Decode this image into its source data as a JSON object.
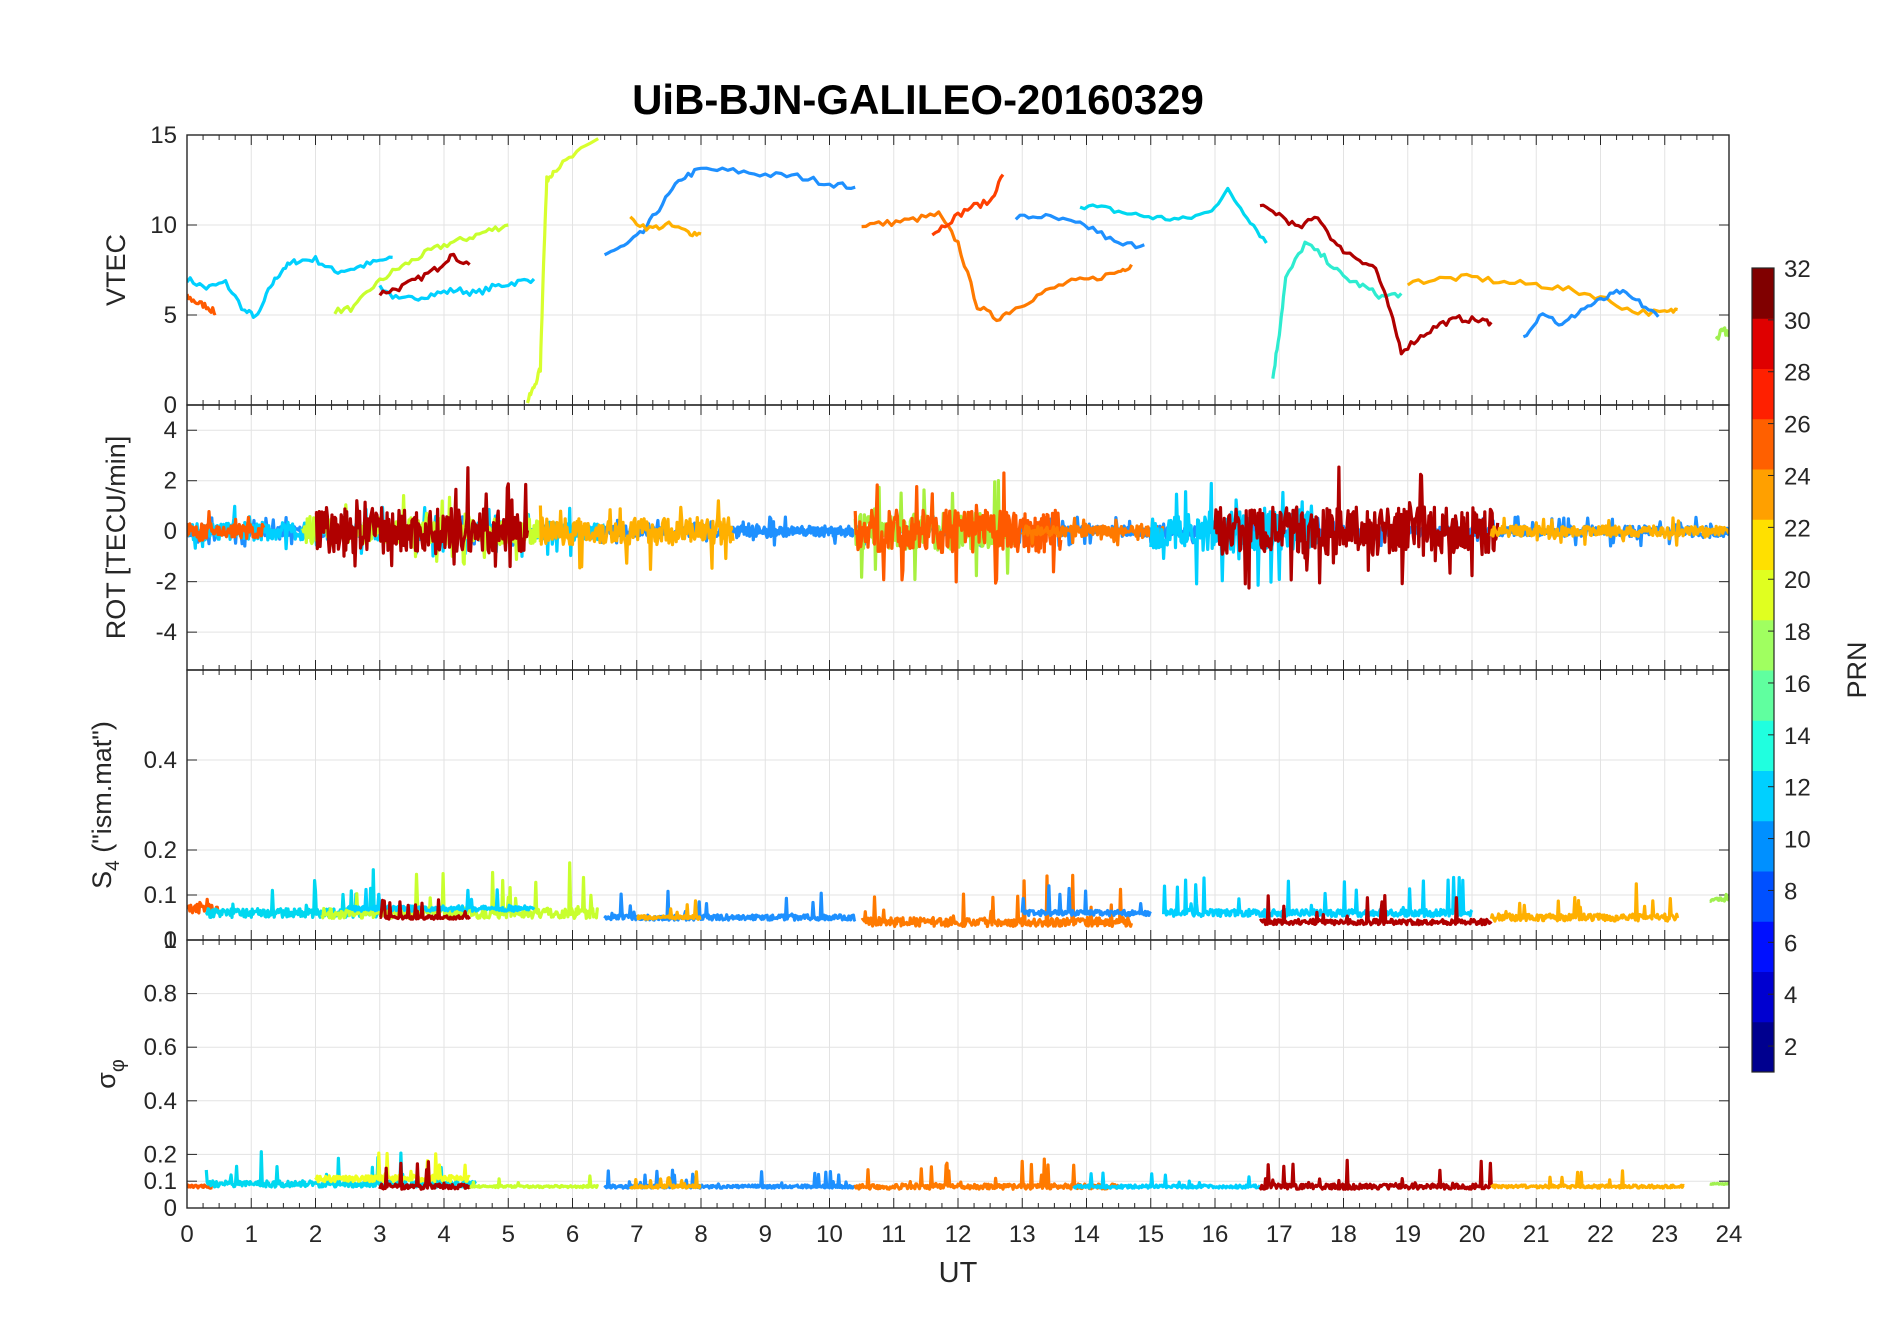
{
  "chart_data": [
    {
      "type": "line",
      "title": "UiB-BJN-GALILEO-20160329",
      "panel": "VTEC",
      "ylabel": "VTEC",
      "xlabel": "",
      "xlim": [
        0,
        24
      ],
      "ylim": [
        0,
        15
      ],
      "yticks": [
        0,
        5,
        10,
        15
      ],
      "grid": true,
      "series": [
        {
          "color": "#00d0ff",
          "x": [
            0,
            0.3,
            0.6,
            0.9,
            1.1,
            1.3,
            1.5,
            1.7,
            2.0,
            2.3,
            2.6,
            2.9,
            3.2
          ],
          "y": [
            7.0,
            6.5,
            6.8,
            5.2,
            4.9,
            6.6,
            7.6,
            8.0,
            8.1,
            7.4,
            7.6,
            7.9,
            8.2
          ]
        },
        {
          "color": "#ff5a00",
          "x": [
            0,
            0.15,
            0.3,
            0.45
          ],
          "y": [
            6.0,
            5.7,
            5.5,
            5.1
          ]
        },
        {
          "color": "#00d0ff",
          "x": [
            3.0,
            3.3,
            3.6,
            3.9,
            4.2,
            4.5,
            4.8,
            5.1,
            5.4
          ],
          "y": [
            6.6,
            5.8,
            6.0,
            6.2,
            6.4,
            6.2,
            6.6,
            6.8,
            7.0
          ]
        },
        {
          "color": "#c8ff2e",
          "x": [
            2.3,
            2.6,
            2.9,
            3.2,
            3.5,
            3.8,
            4.1,
            4.4,
            4.7,
            5.0
          ],
          "y": [
            5.2,
            5.4,
            6.6,
            7.4,
            8.0,
            8.6,
            9.0,
            9.3,
            9.7,
            10.0
          ]
        },
        {
          "color": "#b00000",
          "x": [
            3.0,
            3.3,
            3.6,
            3.9,
            4.1,
            4.4
          ],
          "y": [
            6.2,
            6.5,
            7.0,
            7.6,
            8.3,
            7.8
          ]
        },
        {
          "color": "#d8ff2e",
          "x": [
            5.3,
            5.4,
            5.5,
            5.55,
            5.6,
            5.7,
            6.0,
            6.4
          ],
          "y": [
            0.2,
            1.0,
            2.0,
            8.0,
            12.5,
            13.0,
            13.8,
            14.8
          ]
        },
        {
          "color": "#1e90ff",
          "x": [
            6.5,
            6.8,
            7.1,
            7.4,
            7.7,
            8.0,
            8.5,
            9.0,
            9.5,
            10.0,
            10.4
          ],
          "y": [
            8.4,
            8.8,
            9.6,
            11.2,
            12.6,
            13.1,
            13.0,
            12.8,
            12.7,
            12.3,
            12.1
          ]
        },
        {
          "color": "#ffb000",
          "x": [
            6.9,
            7.2,
            7.5,
            7.8,
            8.0
          ],
          "y": [
            10.3,
            9.8,
            10.0,
            9.6,
            9.5
          ]
        },
        {
          "color": "#ff7a00",
          "x": [
            10.5,
            10.9,
            11.3,
            11.7,
            12.0,
            12.3,
            12.6,
            12.9,
            13.3,
            13.7,
            14.1,
            14.5,
            14.7
          ],
          "y": [
            10.0,
            10.1,
            10.3,
            10.6,
            9.0,
            5.5,
            4.8,
            5.4,
            6.2,
            6.8,
            7.0,
            7.4,
            7.8
          ]
        },
        {
          "color": "#ff4000",
          "x": [
            11.6,
            11.9,
            12.2,
            12.5,
            12.7
          ],
          "y": [
            9.5,
            10.3,
            11.0,
            11.3,
            12.8
          ]
        },
        {
          "color": "#1e90ff",
          "x": [
            12.9,
            13.3,
            13.7,
            14.1,
            14.5,
            14.9
          ],
          "y": [
            10.4,
            10.5,
            10.2,
            9.8,
            8.9,
            8.9
          ]
        },
        {
          "color": "#00d8f0",
          "x": [
            13.9,
            14.3,
            14.7,
            15.1,
            15.5,
            15.9,
            16.2,
            16.5,
            16.8
          ],
          "y": [
            11.1,
            10.9,
            10.6,
            10.4,
            10.3,
            10.7,
            11.9,
            10.5,
            9.0
          ]
        },
        {
          "color": "#2eecd0",
          "x": [
            16.9,
            17.0,
            17.1,
            17.4,
            17.7,
            18.0,
            18.3,
            18.6,
            18.9
          ],
          "y": [
            1.5,
            4.0,
            7.0,
            9.0,
            8.2,
            7.1,
            6.6,
            6.0,
            6.2
          ]
        },
        {
          "color": "#b00000",
          "x": [
            16.7,
            17.0,
            17.3,
            17.6,
            17.9,
            18.2,
            18.5,
            18.7,
            18.9,
            19.2,
            19.5,
            19.8,
            20.1,
            20.3
          ],
          "y": [
            11.0,
            10.6,
            9.8,
            10.5,
            8.8,
            8.2,
            7.6,
            5.5,
            3.0,
            3.8,
            4.5,
            4.8,
            4.7,
            4.6
          ]
        },
        {
          "color": "#ffb000",
          "x": [
            19.0,
            19.5,
            20.0,
            20.5,
            21.0,
            21.5,
            22.0,
            22.5,
            23.0,
            23.2
          ],
          "y": [
            6.8,
            7.0,
            7.1,
            6.8,
            6.7,
            6.4,
            6.0,
            5.2,
            5.1,
            5.3
          ]
        },
        {
          "color": "#1e90ff",
          "x": [
            20.8,
            21.1,
            21.4,
            21.7,
            22.0,
            22.3,
            22.6,
            22.9
          ],
          "y": [
            3.8,
            5.2,
            4.4,
            5.3,
            5.8,
            6.3,
            5.7,
            4.9
          ]
        },
        {
          "color": "#a0f050",
          "x": [
            23.8,
            23.9,
            24.0
          ],
          "y": [
            3.6,
            4.3,
            3.8
          ]
        }
      ]
    },
    {
      "type": "line",
      "panel": "ROT",
      "ylabel": "ROT [TECU/min]",
      "xlim": [
        0,
        24
      ],
      "ylim": [
        -5.5,
        5
      ],
      "yticks": [
        -4,
        -2,
        0,
        2,
        4
      ],
      "grid": true,
      "series": [
        {
          "color": "#1e90ff",
          "x": [
            0,
            24
          ],
          "amp": 0.35
        },
        {
          "color": "#00d0ff",
          "x": [
            0,
            6.5
          ],
          "amp": 0.6
        },
        {
          "color": "#ff5a00",
          "x": [
            0,
            1.2
          ],
          "amp": 0.5
        },
        {
          "color": "#c8ff2e",
          "x": [
            1.8,
            5.5
          ],
          "amp": 0.9
        },
        {
          "color": "#b00000",
          "x": [
            2.0,
            5.3
          ],
          "amp": 1.5
        },
        {
          "color": "#ffb000",
          "x": [
            5.5,
            8.5
          ],
          "amp": 0.9
        },
        {
          "color": "#1e90ff",
          "x": [
            8.5,
            10.5
          ],
          "amp": 0.15
        },
        {
          "color": "#a8f040",
          "x": [
            10.4,
            12.9
          ],
          "amp": 1.2
        },
        {
          "color": "#ff5a00",
          "x": [
            10.4,
            13.6
          ],
          "amp": 1.4
        },
        {
          "color": "#ff7a00",
          "x": [
            13.0,
            15.2
          ],
          "amp": 0.35
        },
        {
          "color": "#00d0ff",
          "x": [
            15.0,
            17.6
          ],
          "amp": 1.3
        },
        {
          "color": "#b00000",
          "x": [
            16.0,
            20.4
          ],
          "amp": 1.6
        },
        {
          "color": "#ffb000",
          "x": [
            20.3,
            24.0
          ],
          "amp": 0.35
        }
      ]
    },
    {
      "type": "line",
      "panel": "S4",
      "ylabel": "S4 (\"ism.mat\")",
      "xlim": [
        0,
        24
      ],
      "ylim": [
        0,
        0.6
      ],
      "yticks": [
        0,
        0.1,
        0.2,
        0.4
      ],
      "grid": true,
      "series": [
        {
          "color": "#ff5a00",
          "x": [
            0,
            0.5
          ],
          "base": 0.07,
          "amp": 0.05
        },
        {
          "color": "#00d8f0",
          "x": [
            0.3,
            3.0
          ],
          "base": 0.06,
          "amp": 0.05
        },
        {
          "color": "#c8ff2e",
          "x": [
            2.1,
            6.4
          ],
          "base": 0.06,
          "amp": 0.06
        },
        {
          "color": "#00d0ff",
          "x": [
            2.5,
            5.4
          ],
          "base": 0.07,
          "amp": 0.03
        },
        {
          "color": "#b00000",
          "x": [
            3.0,
            4.4
          ],
          "base": 0.05,
          "amp": 0.02
        },
        {
          "color": "#1e90ff",
          "x": [
            6.5,
            10.4
          ],
          "base": 0.05,
          "amp": 0.03
        },
        {
          "color": "#ffb000",
          "x": [
            7.0,
            8.0
          ],
          "base": 0.05,
          "amp": 0.02
        },
        {
          "color": "#ff7a00",
          "x": [
            10.5,
            14.7
          ],
          "base": 0.04,
          "amp": 0.05
        },
        {
          "color": "#1e90ff",
          "x": [
            13.0,
            15.0
          ],
          "base": 0.06,
          "amp": 0.03
        },
        {
          "color": "#00d0ff",
          "x": [
            15.2,
            20.0
          ],
          "base": 0.06,
          "amp": 0.04
        },
        {
          "color": "#b00000",
          "x": [
            16.7,
            20.3
          ],
          "base": 0.04,
          "amp": 0.03
        },
        {
          "color": "#ffb000",
          "x": [
            20.3,
            23.2
          ],
          "base": 0.05,
          "amp": 0.04
        },
        {
          "color": "#a0f050",
          "x": [
            23.7,
            24.0
          ],
          "base": 0.09,
          "amp": 0.02
        }
      ]
    },
    {
      "type": "line",
      "panel": "sigma_phi",
      "ylabel": "σ_φ",
      "xlabel": "UT",
      "xlim": [
        0,
        24
      ],
      "ylim": [
        0,
        1
      ],
      "yticks": [
        0,
        0.1,
        0.2,
        0.4,
        0.6,
        0.8,
        1
      ],
      "xticks": [
        0,
        1,
        2,
        3,
        4,
        5,
        6,
        7,
        8,
        9,
        10,
        11,
        12,
        13,
        14,
        15,
        16,
        17,
        18,
        19,
        20,
        21,
        22,
        23,
        24
      ],
      "grid": true,
      "series": [
        {
          "color": "#ff5a00",
          "x": [
            0,
            0.4
          ],
          "base": 0.08,
          "amp": 0.03
        },
        {
          "color": "#00d8f0",
          "x": [
            0.3,
            4.5
          ],
          "base": 0.09,
          "amp": 0.06
        },
        {
          "color": "#f0ff20",
          "x": [
            2.0,
            4.4
          ],
          "base": 0.11,
          "amp": 0.06
        },
        {
          "color": "#b00000",
          "x": [
            3.0,
            4.4
          ],
          "base": 0.08,
          "amp": 0.05
        },
        {
          "color": "#c8ff2e",
          "x": [
            4.4,
            6.4
          ],
          "base": 0.08,
          "amp": 0.02
        },
        {
          "color": "#1e90ff",
          "x": [
            6.5,
            10.4
          ],
          "base": 0.08,
          "amp": 0.03
        },
        {
          "color": "#ffb000",
          "x": [
            6.9,
            8.0
          ],
          "base": 0.08,
          "amp": 0.03
        },
        {
          "color": "#ff7a00",
          "x": [
            10.4,
            14.5
          ],
          "base": 0.08,
          "amp": 0.05
        },
        {
          "color": "#00d0ff",
          "x": [
            13.8,
            16.7
          ],
          "base": 0.08,
          "amp": 0.03
        },
        {
          "color": "#b00000",
          "x": [
            16.7,
            20.3
          ],
          "base": 0.08,
          "amp": 0.05
        },
        {
          "color": "#ffb000",
          "x": [
            20.3,
            23.3
          ],
          "base": 0.08,
          "amp": 0.03
        },
        {
          "color": "#a0f050",
          "x": [
            23.7,
            24.0
          ],
          "base": 0.09,
          "amp": 0.01
        }
      ]
    }
  ],
  "colorbar": {
    "label": "PRN",
    "range": [
      1,
      32
    ],
    "ticks": [
      "2",
      "4",
      "6",
      "8",
      "10",
      "12",
      "14",
      "16",
      "18",
      "20",
      "22",
      "24",
      "26",
      "28",
      "30",
      "32"
    ],
    "colors": [
      "#00008f",
      "#0000d0",
      "#0010ff",
      "#0050ff",
      "#0090ff",
      "#00d0ff",
      "#20ffdf",
      "#60ff9f",
      "#a0ff60",
      "#e0ff20",
      "#ffe000",
      "#ffa000",
      "#ff6000",
      "#ff2000",
      "#df0000",
      "#800000"
    ]
  }
}
